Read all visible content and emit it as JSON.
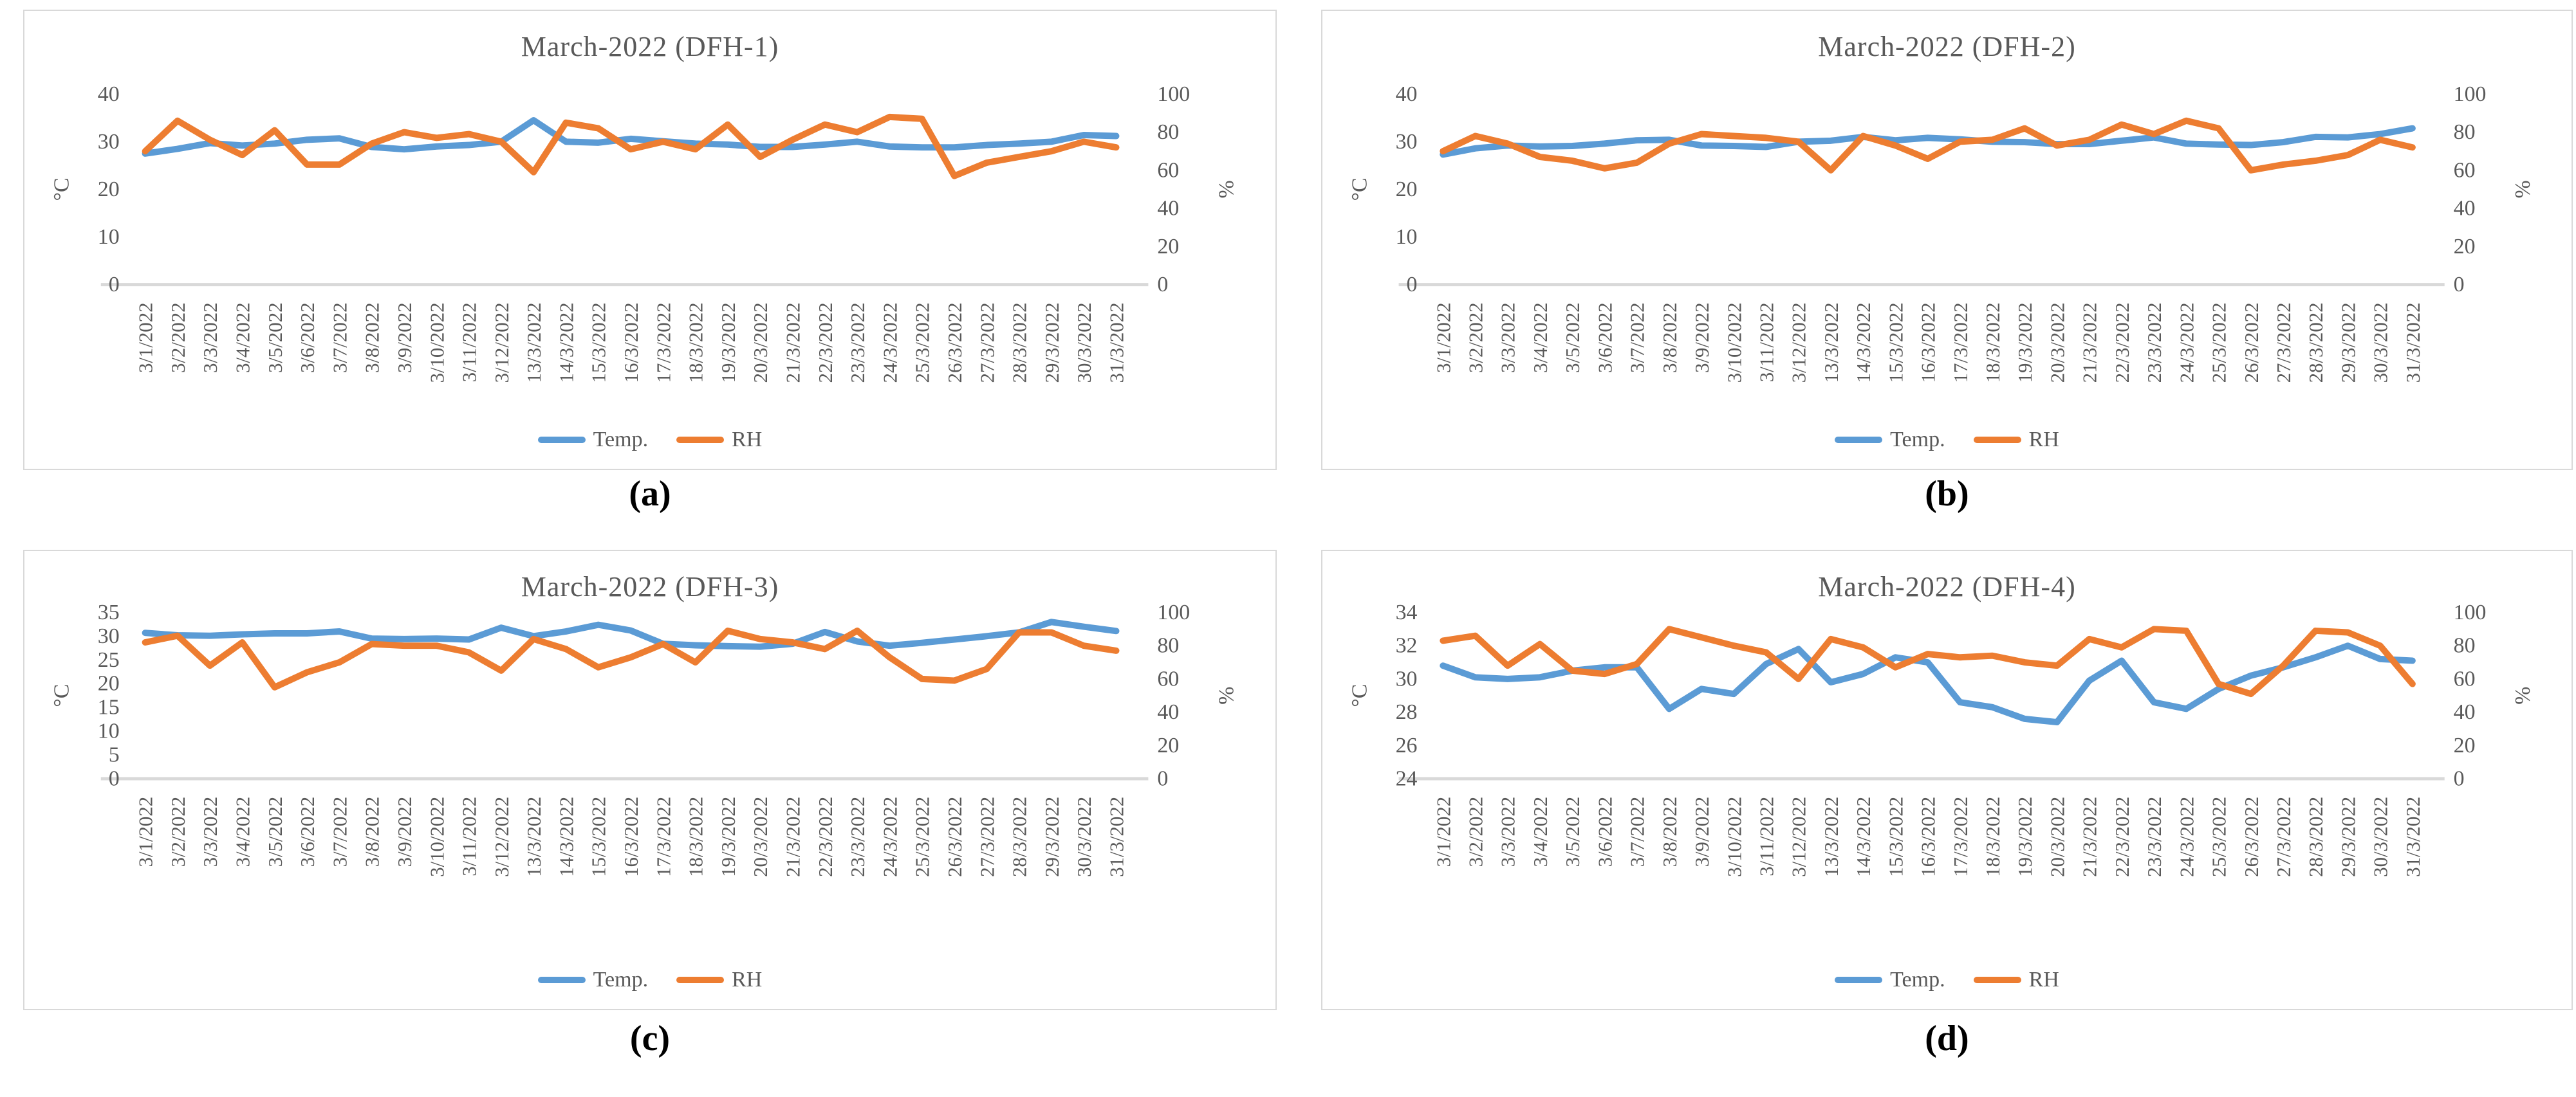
{
  "colors": {
    "temp": "#5B9BD5",
    "rh": "#ED7D31",
    "text": "#595959",
    "axis_line": "#D9D9D9",
    "panel_border": "#D9D9D9",
    "panel_letter": "#000000"
  },
  "axis_units": {
    "left": "°C",
    "right": "%"
  },
  "legend": {
    "temp_label": "Temp.",
    "rh_label": "RH"
  },
  "categories": [
    "3/1/2022",
    "3/2/2022",
    "3/3/2022",
    "3/4/2022",
    "3/5/2022",
    "3/6/2022",
    "3/7/2022",
    "3/8/2022",
    "3/9/2022",
    "3/10/2022",
    "3/11/2022",
    "3/12/2022",
    "13/3/2022",
    "14/3/2022",
    "15/3/2022",
    "16/3/2022",
    "17/3/2022",
    "18/3/2022",
    "19/3/2022",
    "20/3/2022",
    "21/3/2022",
    "22/3/2022",
    "23/3/2022",
    "24/3/2022",
    "25/3/2022",
    "26/3/2022",
    "27/3/2022",
    "28/3/2022",
    "29/3/2022",
    "30/3/2022",
    "31/3/2022"
  ],
  "chart_data": [
    {
      "type": "line",
      "panel_label": "(a)",
      "title": "March-2022 (DFH-1)",
      "xlabel": "",
      "ylabel_left": "°C",
      "ylabel_right": "%",
      "grid": false,
      "legend_position": "bottom",
      "left_axis": {
        "min": 0,
        "max": 40,
        "ticks": [
          40,
          30,
          20,
          10,
          0
        ]
      },
      "right_axis": {
        "min": 0,
        "max": 100,
        "ticks": [
          100,
          80,
          60,
          40,
          20,
          0
        ]
      },
      "series": [
        {
          "name": "Temp.",
          "axis": "left",
          "color_key": "temp",
          "values": [
            27.5,
            28.5,
            29.7,
            29.2,
            29.6,
            30.4,
            30.7,
            28.9,
            28.4,
            29.0,
            29.3,
            30.0,
            34.5,
            30.0,
            29.8,
            30.6,
            30.1,
            29.6,
            29.4,
            28.9,
            28.9,
            29.4,
            30.0,
            29.0,
            28.8,
            28.8,
            29.3,
            29.6,
            30.0,
            31.4,
            31.2
          ]
        },
        {
          "name": "RH",
          "axis": "right",
          "color_key": "rh",
          "values": [
            70,
            86,
            76,
            68,
            81,
            63,
            63,
            74,
            80,
            77,
            79,
            75,
            59,
            85,
            82,
            71,
            75,
            71,
            84,
            67,
            76,
            84,
            80,
            88,
            87,
            57,
            64,
            67,
            70,
            75,
            72
          ]
        }
      ]
    },
    {
      "type": "line",
      "panel_label": "(b)",
      "title": "March-2022 (DFH-2)",
      "xlabel": "",
      "ylabel_left": "°C",
      "ylabel_right": "%",
      "grid": false,
      "legend_position": "bottom",
      "left_axis": {
        "min": 0,
        "max": 40,
        "ticks": [
          40,
          30,
          20,
          10,
          0
        ]
      },
      "right_axis": {
        "min": 0,
        "max": 100,
        "ticks": [
          100,
          80,
          60,
          40,
          20,
          0
        ]
      },
      "series": [
        {
          "name": "Temp.",
          "axis": "left",
          "color_key": "temp",
          "values": [
            27.3,
            28.6,
            29.2,
            29.0,
            29.1,
            29.6,
            30.3,
            30.4,
            29.2,
            29.1,
            28.9,
            30.0,
            30.2,
            31.0,
            30.3,
            30.8,
            30.5,
            30.0,
            29.9,
            29.5,
            29.5,
            30.2,
            30.9,
            29.6,
            29.4,
            29.3,
            29.9,
            31.0,
            30.9,
            31.6,
            32.8
          ]
        },
        {
          "name": "RH",
          "axis": "right",
          "color_key": "rh",
          "values": [
            70,
            78,
            74,
            67,
            65,
            61,
            64,
            74,
            79,
            78,
            77,
            75,
            60,
            78,
            73,
            66,
            75,
            76,
            82,
            73,
            76,
            84,
            79,
            86,
            82,
            60,
            63,
            65,
            68,
            76,
            72
          ]
        }
      ]
    },
    {
      "type": "line",
      "panel_label": "(c)",
      "title": "March-2022 (DFH-3)",
      "xlabel": "",
      "ylabel_left": "°C",
      "ylabel_right": "%",
      "grid": false,
      "legend_position": "bottom",
      "left_axis": {
        "min": 0,
        "max": 35,
        "ticks": [
          35,
          30,
          25,
          20,
          15,
          10,
          5,
          0
        ]
      },
      "right_axis": {
        "min": 0,
        "max": 100,
        "ticks": [
          100,
          80,
          60,
          40,
          20,
          0
        ]
      },
      "series": [
        {
          "name": "Temp.",
          "axis": "left",
          "color_key": "temp",
          "values": [
            30.7,
            30.2,
            30.1,
            30.4,
            30.6,
            30.6,
            31.0,
            29.5,
            29.4,
            29.5,
            29.3,
            31.8,
            30.0,
            31.0,
            32.4,
            31.2,
            28.4,
            28.1,
            27.9,
            27.8,
            28.4,
            30.9,
            28.9,
            28.0,
            28.6,
            29.3,
            30.0,
            30.8,
            33.0,
            32.0,
            31.1
          ]
        },
        {
          "name": "RH",
          "axis": "right",
          "color_key": "rh",
          "values": [
            82,
            86,
            68,
            82,
            55,
            64,
            70,
            81,
            80,
            80,
            76,
            65,
            84,
            78,
            67,
            73,
            81,
            70,
            89,
            84,
            82,
            78,
            89,
            73,
            60,
            59,
            66,
            88,
            88,
            80,
            77
          ]
        }
      ]
    },
    {
      "type": "line",
      "panel_label": "(d)",
      "title": "March-2022 (DFH-4)",
      "xlabel": "",
      "ylabel_left": "°C",
      "ylabel_right": "%",
      "grid": false,
      "legend_position": "bottom",
      "left_axis": {
        "min": 24,
        "max": 34,
        "ticks": [
          34,
          32,
          30,
          28,
          26,
          24
        ]
      },
      "right_axis": {
        "min": 0,
        "max": 100,
        "ticks": [
          100,
          80,
          60,
          40,
          20,
          0
        ]
      },
      "series": [
        {
          "name": "Temp.",
          "axis": "left",
          "color_key": "temp",
          "values": [
            30.8,
            30.1,
            30.0,
            30.1,
            30.5,
            30.7,
            30.7,
            28.2,
            29.4,
            29.1,
            30.9,
            31.8,
            29.8,
            30.3,
            31.3,
            31.0,
            28.6,
            28.3,
            27.6,
            27.4,
            29.9,
            31.1,
            28.6,
            28.2,
            29.4,
            30.2,
            30.7,
            31.3,
            32.0,
            31.2,
            31.1
          ]
        },
        {
          "name": "RH",
          "axis": "right",
          "color_key": "rh",
          "values": [
            83,
            86,
            68,
            81,
            65,
            63,
            69,
            90,
            85,
            80,
            76,
            60,
            84,
            79,
            67,
            75,
            73,
            74,
            70,
            68,
            84,
            79,
            90,
            89,
            57,
            51,
            68,
            89,
            88,
            80,
            57
          ]
        }
      ]
    }
  ]
}
